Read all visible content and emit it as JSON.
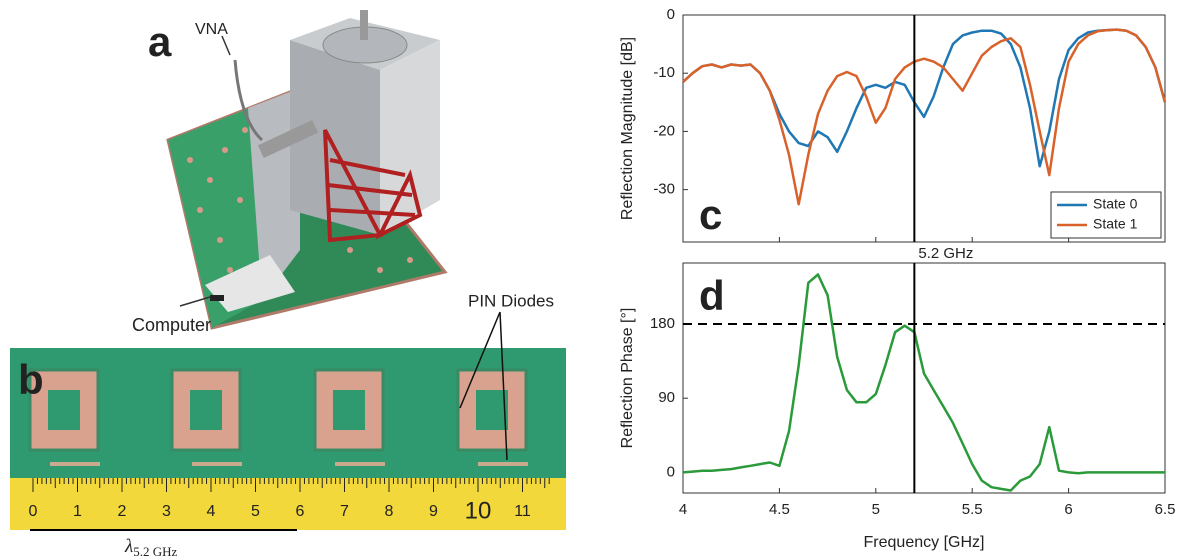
{
  "panels": {
    "a": {
      "label": "a",
      "annotations": [
        "VNA",
        "Computer"
      ]
    },
    "b": {
      "label": "b",
      "annotations": [
        "PIN Diodes"
      ],
      "ruler_labels": [
        0,
        1,
        2,
        3,
        4,
        5,
        6,
        7,
        8,
        9,
        10,
        11
      ],
      "scale_symbol": "λ",
      "scale_subscript": "5.2 GHz"
    }
  },
  "chart_data": [
    {
      "type": "line",
      "panel_label": "c",
      "ylabel": "Reflection Magnitude [dB]",
      "x": [
        4.0,
        4.05,
        4.1,
        4.15,
        4.2,
        4.25,
        4.3,
        4.35,
        4.4,
        4.45,
        4.5,
        4.55,
        4.6,
        4.65,
        4.7,
        4.75,
        4.8,
        4.85,
        4.9,
        4.95,
        5.0,
        5.05,
        5.1,
        5.15,
        5.2,
        5.25,
        5.3,
        5.35,
        5.4,
        5.45,
        5.5,
        5.55,
        5.6,
        5.65,
        5.7,
        5.75,
        5.8,
        5.85,
        5.9,
        5.95,
        6.0,
        6.05,
        6.1,
        6.15,
        6.2,
        6.25,
        6.3,
        6.35,
        6.4,
        6.45,
        6.5
      ],
      "series": [
        {
          "name": "State 0",
          "color": "#1f77b4",
          "values": [
            -11.5,
            -10,
            -8.8,
            -8.5,
            -9,
            -8.5,
            -8.7,
            -8.5,
            -10,
            -13,
            -17,
            -20,
            -22,
            -22.5,
            -20,
            -21,
            -23.5,
            -20,
            -16,
            -12.5,
            -12,
            -12.5,
            -11.5,
            -12,
            -15,
            -17.5,
            -14,
            -9,
            -5,
            -3.5,
            -3,
            -2.7,
            -2.7,
            -3.2,
            -5,
            -9,
            -16,
            -26,
            -20,
            -11,
            -6,
            -4,
            -3,
            -2.7,
            -2.6,
            -2.5,
            -2.7,
            -3.5,
            -5.5,
            -9,
            -15
          ]
        },
        {
          "name": "State 1",
          "color": "#d9622b",
          "values": [
            -11.5,
            -10,
            -8.8,
            -8.5,
            -9,
            -8.5,
            -8.7,
            -8.5,
            -10,
            -13,
            -18,
            -24,
            -32.5,
            -24,
            -17,
            -13,
            -10.5,
            -9.8,
            -10.5,
            -14,
            -18.5,
            -16,
            -11,
            -9,
            -8,
            -7.5,
            -8,
            -9,
            -11,
            -13,
            -10,
            -7,
            -5.5,
            -4.5,
            -4,
            -5.5,
            -12,
            -20,
            -27.5,
            -16,
            -8,
            -5,
            -3.5,
            -2.8,
            -2.6,
            -2.5,
            -2.7,
            -3.5,
            -5.5,
            -9,
            -15
          ]
        }
      ],
      "xlim": [
        4,
        6.5
      ],
      "xticks": [
        4,
        4.5,
        5,
        5.5,
        6,
        6.5
      ],
      "show_xtick_labels": false,
      "ylim": [
        -39,
        0
      ],
      "yticks": [
        0,
        -10,
        -20,
        -30
      ],
      "legend": "lower right",
      "vline": {
        "x": 5.2,
        "label": "5.2 GHz"
      }
    },
    {
      "type": "line",
      "panel_label": "d",
      "ylabel": "Reflection Phase [°]",
      "xlabel": "Frequency [GHz]",
      "x": [
        4.0,
        4.05,
        4.1,
        4.15,
        4.2,
        4.25,
        4.3,
        4.35,
        4.4,
        4.45,
        4.5,
        4.55,
        4.6,
        4.65,
        4.7,
        4.75,
        4.8,
        4.85,
        4.9,
        4.95,
        5.0,
        5.05,
        5.1,
        5.15,
        5.2,
        5.25,
        5.3,
        5.35,
        5.4,
        5.45,
        5.5,
        5.55,
        5.6,
        5.65,
        5.7,
        5.75,
        5.8,
        5.85,
        5.9,
        5.95,
        6.0,
        6.05,
        6.1,
        6.15,
        6.2,
        6.25,
        6.3,
        6.35,
        6.4,
        6.45,
        6.5
      ],
      "series": [
        {
          "color": "#2a9a3a",
          "values": [
            0,
            1,
            2,
            2,
            3,
            4,
            6,
            8,
            10,
            12,
            8,
            50,
            130,
            230,
            240,
            215,
            140,
            100,
            85,
            85,
            95,
            130,
            170,
            178,
            170,
            120,
            100,
            80,
            60,
            35,
            10,
            -10,
            -18,
            -20,
            -22,
            -10,
            -5,
            10,
            55,
            2,
            0,
            -1,
            0,
            0,
            0,
            0,
            0,
            0,
            0,
            0,
            0
          ]
        }
      ],
      "xlim": [
        4,
        6.5
      ],
      "xticks": [
        4,
        4.5,
        5,
        5.5,
        6,
        6.5
      ],
      "show_xtick_labels": true,
      "ylim": [
        -25,
        254
      ],
      "yticks": [
        0,
        90,
        180
      ],
      "vline": {
        "x": 5.2
      },
      "hline": {
        "y": 180,
        "style": "dashed"
      }
    }
  ]
}
